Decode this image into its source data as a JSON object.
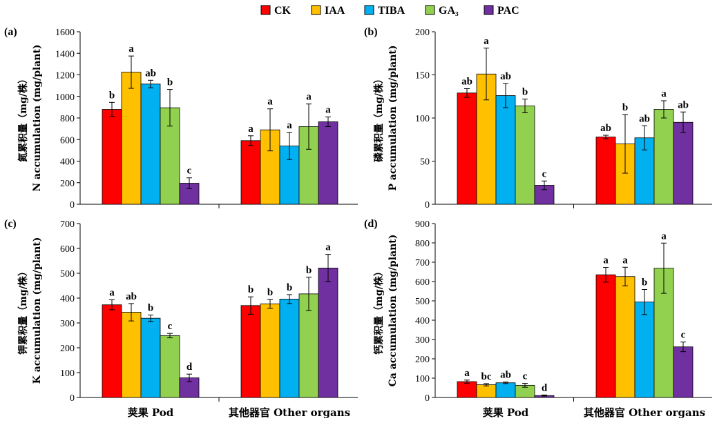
{
  "legend": [
    {
      "label": "CK",
      "color": "#ff0000"
    },
    {
      "label": "IAA",
      "color": "#ffc000"
    },
    {
      "label": "TIBA",
      "color": "#00b0f0"
    },
    {
      "label": "GA₃",
      "color": "#92d050"
    },
    {
      "label": "PAC",
      "color": "#7030a0"
    }
  ],
  "chart_data": [
    {
      "type": "bar",
      "panel": "(a)",
      "ylabel_cn": "氮累积量（mg/株）",
      "ylabel_en": "N accumulation (mg/plant)",
      "ylim": [
        0,
        1600
      ],
      "yticks": [
        0,
        200,
        400,
        600,
        800,
        1000,
        1200,
        1400,
        1600
      ],
      "categories": [
        "荚果 Pod",
        "其他器官 Other organs"
      ],
      "series": [
        {
          "name": "CK",
          "values": [
            880,
            590
          ],
          "errors": [
            65,
            45
          ],
          "letters": [
            "b",
            "a"
          ]
        },
        {
          "name": "IAA",
          "values": [
            1225,
            690
          ],
          "errors": [
            150,
            195
          ],
          "letters": [
            "a",
            "a"
          ]
        },
        {
          "name": "TIBA",
          "values": [
            1115,
            540
          ],
          "errors": [
            35,
            125
          ],
          "letters": [
            "ab",
            "a"
          ]
        },
        {
          "name": "GA₃",
          "values": [
            895,
            720
          ],
          "errors": [
            170,
            210
          ],
          "letters": [
            "b",
            "a"
          ]
        },
        {
          "name": "PAC",
          "values": [
            195,
            765
          ],
          "errors": [
            50,
            45
          ],
          "letters": [
            "c",
            "a"
          ]
        }
      ]
    },
    {
      "type": "bar",
      "panel": "(b)",
      "ylabel_cn": "磷累积量（mg/株）",
      "ylabel_en": "P accumulation (mg/plant)",
      "ylim": [
        0,
        200
      ],
      "yticks": [
        0,
        50,
        100,
        150,
        200
      ],
      "categories": [
        "荚果 Pod",
        "其他器官 Other organs"
      ],
      "series": [
        {
          "name": "CK",
          "values": [
            129,
            78
          ],
          "errors": [
            5,
            2
          ],
          "letters": [
            "ab",
            "ab"
          ]
        },
        {
          "name": "IAA",
          "values": [
            151,
            70
          ],
          "errors": [
            30,
            34
          ],
          "letters": [
            "a",
            "b"
          ]
        },
        {
          "name": "TIBA",
          "values": [
            126,
            77
          ],
          "errors": [
            14,
            14
          ],
          "letters": [
            "ab",
            "ab"
          ]
        },
        {
          "name": "GA₃",
          "values": [
            114,
            110
          ],
          "errors": [
            8,
            10
          ],
          "letters": [
            "b",
            "a"
          ]
        },
        {
          "name": "PAC",
          "values": [
            22,
            95
          ],
          "errors": [
            5,
            12
          ],
          "letters": [
            "c",
            "ab"
          ]
        }
      ]
    },
    {
      "type": "bar",
      "panel": "(c)",
      "ylabel_cn": "钾累积量（mg/株）",
      "ylabel_en": "K accumulation (mg/plant)",
      "ylim": [
        0,
        700
      ],
      "yticks": [
        0,
        100,
        200,
        300,
        400,
        500,
        600,
        700
      ],
      "categories": [
        "荚果 Pod",
        "其他器官 Other organs"
      ],
      "series": [
        {
          "name": "CK",
          "values": [
            373,
            370
          ],
          "errors": [
            20,
            35
          ],
          "letters": [
            "a",
            "b"
          ]
        },
        {
          "name": "IAA",
          "values": [
            343,
            377
          ],
          "errors": [
            35,
            18
          ],
          "letters": [
            "ab",
            "b"
          ]
        },
        {
          "name": "TIBA",
          "values": [
            319,
            396
          ],
          "errors": [
            13,
            18
          ],
          "letters": [
            "b",
            "b"
          ]
        },
        {
          "name": "GA₃",
          "values": [
            249,
            417
          ],
          "errors": [
            9,
            67
          ],
          "letters": [
            "c",
            "b"
          ]
        },
        {
          "name": "PAC",
          "values": [
            79,
            521
          ],
          "errors": [
            15,
            55
          ],
          "letters": [
            "d",
            "a"
          ]
        }
      ]
    },
    {
      "type": "bar",
      "panel": "(d)",
      "ylabel_cn": "钙累积量（mg/株）",
      "ylabel_en": "Ca accumulation (mg/plant)",
      "ylim": [
        0,
        900
      ],
      "yticks": [
        0,
        100,
        200,
        300,
        400,
        500,
        600,
        700,
        800,
        900
      ],
      "categories": [
        "荚果 Pod",
        "其他器官 Other organs"
      ],
      "series": [
        {
          "name": "CK",
          "values": [
            82,
            635
          ],
          "errors": [
            8,
            38
          ],
          "letters": [
            "a",
            "a"
          ]
        },
        {
          "name": "IAA",
          "values": [
            66,
            626
          ],
          "errors": [
            6,
            48
          ],
          "letters": [
            "bc",
            "a"
          ]
        },
        {
          "name": "TIBA",
          "values": [
            76,
            494
          ],
          "errors": [
            4,
            65
          ],
          "letters": [
            "ab",
            "b"
          ]
        },
        {
          "name": "GA₃",
          "values": [
            63,
            669
          ],
          "errors": [
            10,
            130
          ],
          "letters": [
            "c",
            "a"
          ]
        },
        {
          "name": "PAC",
          "values": [
            10,
            262
          ],
          "errors": [
            3,
            25
          ],
          "letters": [
            "d",
            "c"
          ]
        }
      ]
    }
  ]
}
